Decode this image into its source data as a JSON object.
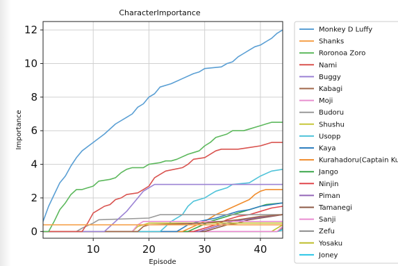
{
  "chart_data": {
    "type": "line",
    "title": "CharacterImportance",
    "xlabel": "Episode",
    "ylabel": "Importance",
    "xlim": [
      1,
      44
    ],
    "ylim": [
      -0.4,
      12.5
    ],
    "xticks": [
      10,
      20,
      30,
      40
    ],
    "yticks": [
      0,
      2,
      4,
      6,
      8,
      10,
      12
    ],
    "grid": true,
    "legend_position": "right, outside plot",
    "series": [
      {
        "name": "Monkey D Luffy",
        "color": "#5a9fd4",
        "points": [
          [
            1,
            0.6
          ],
          [
            2,
            1.5
          ],
          [
            3,
            2.2
          ],
          [
            4,
            2.9
          ],
          [
            5,
            3.3
          ],
          [
            6,
            3.9
          ],
          [
            7,
            4.4
          ],
          [
            8,
            4.8
          ],
          [
            10,
            5.3
          ],
          [
            12,
            5.8
          ],
          [
            14,
            6.4
          ],
          [
            16,
            6.8
          ],
          [
            17,
            7.0
          ],
          [
            18,
            7.4
          ],
          [
            19,
            7.6
          ],
          [
            20,
            8.0
          ],
          [
            21,
            8.2
          ],
          [
            22,
            8.6
          ],
          [
            24,
            8.8
          ],
          [
            26,
            9.1
          ],
          [
            28,
            9.4
          ],
          [
            29,
            9.5
          ],
          [
            30,
            9.7
          ],
          [
            33,
            9.8
          ],
          [
            34,
            10.0
          ],
          [
            35,
            10.1
          ],
          [
            36,
            10.4
          ],
          [
            37,
            10.6
          ],
          [
            38,
            10.8
          ],
          [
            39,
            11.0
          ],
          [
            40,
            11.1
          ],
          [
            41,
            11.3
          ],
          [
            42,
            11.5
          ],
          [
            43,
            11.8
          ],
          [
            44,
            12.0
          ]
        ]
      },
      {
        "name": "Shanks",
        "color": "#f5a04a",
        "points": [
          [
            1,
            0.4
          ],
          [
            44,
            0.4
          ]
        ]
      },
      {
        "name": "Roronoa Zoro",
        "color": "#5cb85c",
        "points": [
          [
            1,
            0
          ],
          [
            2,
            0
          ],
          [
            3,
            0.6
          ],
          [
            4,
            1.3
          ],
          [
            5,
            1.7
          ],
          [
            6,
            2.2
          ],
          [
            7,
            2.5
          ],
          [
            8,
            2.5
          ],
          [
            9,
            2.6
          ],
          [
            10,
            2.7
          ],
          [
            11,
            3.0
          ],
          [
            13,
            3.1
          ],
          [
            14,
            3.2
          ],
          [
            15,
            3.5
          ],
          [
            16,
            3.7
          ],
          [
            17,
            3.8
          ],
          [
            19,
            3.8
          ],
          [
            20,
            4.0
          ],
          [
            22,
            4.1
          ],
          [
            23,
            4.2
          ],
          [
            24,
            4.2
          ],
          [
            25,
            4.3
          ],
          [
            27,
            4.6
          ],
          [
            28,
            4.7
          ],
          [
            29,
            4.8
          ],
          [
            30,
            5.1
          ],
          [
            31,
            5.3
          ],
          [
            32,
            5.6
          ],
          [
            33,
            5.7
          ],
          [
            34,
            5.8
          ],
          [
            35,
            6.0
          ],
          [
            37,
            6.0
          ],
          [
            38,
            6.1
          ],
          [
            39,
            6.2
          ],
          [
            40,
            6.3
          ],
          [
            41,
            6.4
          ],
          [
            42,
            6.5
          ],
          [
            44,
            6.5
          ]
        ]
      },
      {
        "name": "Nami",
        "color": "#d9534f",
        "points": [
          [
            1,
            0
          ],
          [
            8,
            0
          ],
          [
            9,
            0.5
          ],
          [
            10,
            1.1
          ],
          [
            11,
            1.3
          ],
          [
            12,
            1.5
          ],
          [
            13,
            1.6
          ],
          [
            14,
            1.9
          ],
          [
            15,
            2.0
          ],
          [
            16,
            2.2
          ],
          [
            18,
            2.3
          ],
          [
            19,
            2.5
          ],
          [
            20,
            2.7
          ],
          [
            21,
            3.2
          ],
          [
            22,
            3.4
          ],
          [
            23,
            3.6
          ],
          [
            26,
            3.8
          ],
          [
            27,
            4.0
          ],
          [
            28,
            4.3
          ],
          [
            30,
            4.4
          ],
          [
            31,
            4.6
          ],
          [
            32,
            4.8
          ],
          [
            33,
            4.9
          ],
          [
            36,
            4.9
          ],
          [
            38,
            5.0
          ],
          [
            40,
            5.1
          ],
          [
            41,
            5.2
          ],
          [
            42,
            5.3
          ],
          [
            44,
            5.3
          ]
        ]
      },
      {
        "name": "Buggy",
        "color": "#9b82d4",
        "points": [
          [
            1,
            0
          ],
          [
            12,
            0
          ],
          [
            13,
            0.3
          ],
          [
            14,
            0.6
          ],
          [
            15,
            0.9
          ],
          [
            16,
            1.2
          ],
          [
            17,
            1.6
          ],
          [
            18,
            2.0
          ],
          [
            19,
            2.4
          ],
          [
            20,
            2.6
          ],
          [
            21,
            2.8
          ],
          [
            44,
            2.8
          ]
        ]
      },
      {
        "name": "Kabagi",
        "color": "#a0674a",
        "points": [
          [
            1,
            0
          ],
          [
            18,
            0
          ],
          [
            19,
            0.3
          ],
          [
            20,
            0.4
          ],
          [
            30,
            0.5
          ],
          [
            36,
            0.7
          ],
          [
            40,
            0.9
          ],
          [
            44,
            1.0
          ]
        ]
      },
      {
        "name": "Moji",
        "color": "#e88fcf",
        "points": [
          [
            1,
            0
          ],
          [
            17,
            0
          ],
          [
            18,
            0.4
          ],
          [
            19,
            0.6
          ],
          [
            44,
            0.6
          ]
        ]
      },
      {
        "name": "Budoru",
        "color": "#999999",
        "points": [
          [
            1,
            0
          ],
          [
            7,
            0
          ],
          [
            8,
            0.2
          ],
          [
            10,
            0.5
          ],
          [
            11,
            0.7
          ],
          [
            20,
            0.8
          ],
          [
            22,
            1.0
          ],
          [
            44,
            1.0
          ]
        ]
      },
      {
        "name": "Shushu",
        "color": "#c7c73a",
        "points": [
          [
            1,
            0
          ],
          [
            17,
            0
          ],
          [
            18,
            0.3
          ],
          [
            20,
            0.5
          ],
          [
            44,
            0.5
          ]
        ]
      },
      {
        "name": "Usopp",
        "color": "#4fc3d9",
        "points": [
          [
            1,
            0
          ],
          [
            22,
            0
          ],
          [
            23,
            0.3
          ],
          [
            24,
            0.6
          ],
          [
            26,
            1.0
          ],
          [
            27,
            1.5
          ],
          [
            28,
            1.8
          ],
          [
            29,
            1.9
          ],
          [
            30,
            2.0
          ],
          [
            31,
            2.2
          ],
          [
            32,
            2.4
          ],
          [
            34,
            2.6
          ],
          [
            35,
            2.8
          ],
          [
            38,
            2.9
          ],
          [
            39,
            3.1
          ],
          [
            40,
            3.3
          ],
          [
            42,
            3.6
          ],
          [
            44,
            3.7
          ]
        ]
      },
      {
        "name": "Kaya",
        "color": "#2f7fbf",
        "points": [
          [
            1,
            0
          ],
          [
            25,
            0
          ],
          [
            27,
            0.4
          ],
          [
            29,
            0.6
          ],
          [
            32,
            0.8
          ],
          [
            34,
            1.0
          ],
          [
            36,
            1.2
          ],
          [
            38,
            1.3
          ],
          [
            40,
            1.5
          ],
          [
            42,
            1.6
          ],
          [
            44,
            1.7
          ]
        ]
      },
      {
        "name": "Kurahadoru(Captain Kuro)",
        "color": "#f08c2c",
        "points": [
          [
            1,
            0
          ],
          [
            26,
            0
          ],
          [
            28,
            0.3
          ],
          [
            30,
            0.6
          ],
          [
            32,
            1.0
          ],
          [
            34,
            1.3
          ],
          [
            36,
            1.6
          ],
          [
            38,
            1.9
          ],
          [
            39,
            2.2
          ],
          [
            40,
            2.4
          ],
          [
            41,
            2.5
          ],
          [
            44,
            2.5
          ]
        ]
      },
      {
        "name": "Jango",
        "color": "#3aa64a",
        "points": [
          [
            1,
            0
          ],
          [
            27,
            0
          ],
          [
            29,
            0.3
          ],
          [
            31,
            0.6
          ],
          [
            33,
            0.8
          ],
          [
            35,
            1.0
          ],
          [
            37,
            1.2
          ],
          [
            39,
            1.4
          ],
          [
            41,
            1.6
          ],
          [
            44,
            1.7
          ]
        ]
      },
      {
        "name": "Ninjin",
        "color": "#e0474c",
        "points": [
          [
            1,
            0
          ],
          [
            28,
            0
          ],
          [
            30,
            0.2
          ],
          [
            32,
            0.4
          ],
          [
            34,
            0.7
          ],
          [
            36,
            0.9
          ],
          [
            38,
            1.0
          ],
          [
            40,
            1.2
          ],
          [
            42,
            1.4
          ],
          [
            44,
            1.5
          ]
        ]
      },
      {
        "name": "Piman",
        "color": "#9366b8",
        "points": [
          [
            1,
            0
          ],
          [
            29,
            0
          ],
          [
            31,
            0.2
          ],
          [
            33,
            0.4
          ],
          [
            35,
            0.6
          ],
          [
            37,
            0.7
          ],
          [
            39,
            0.8
          ],
          [
            41,
            0.9
          ],
          [
            44,
            1.0
          ]
        ]
      },
      {
        "name": "Tamanegi",
        "color": "#8c5a46",
        "points": [
          [
            1,
            0
          ],
          [
            30,
            0
          ],
          [
            32,
            0.2
          ],
          [
            34,
            0.4
          ],
          [
            36,
            0.5
          ],
          [
            38,
            0.7
          ],
          [
            40,
            0.8
          ],
          [
            42,
            0.9
          ],
          [
            44,
            1.0
          ]
        ]
      },
      {
        "name": "Sanji",
        "color": "#ea8bd0",
        "points": [
          [
            1,
            0
          ],
          [
            43,
            0
          ],
          [
            44,
            0.3
          ]
        ]
      },
      {
        "name": "Zefu",
        "color": "#8a8a8a",
        "points": [
          [
            1,
            0
          ],
          [
            43,
            0
          ],
          [
            44,
            0.2
          ]
        ]
      },
      {
        "name": "Yosaku",
        "color": "#bdbd2c",
        "points": [
          [
            1,
            0
          ],
          [
            42,
            0
          ],
          [
            44,
            0.4
          ]
        ]
      },
      {
        "name": "Joney",
        "color": "#29c5e6",
        "points": [
          [
            1,
            0
          ],
          [
            43,
            0
          ],
          [
            44,
            0.1
          ]
        ]
      }
    ]
  }
}
